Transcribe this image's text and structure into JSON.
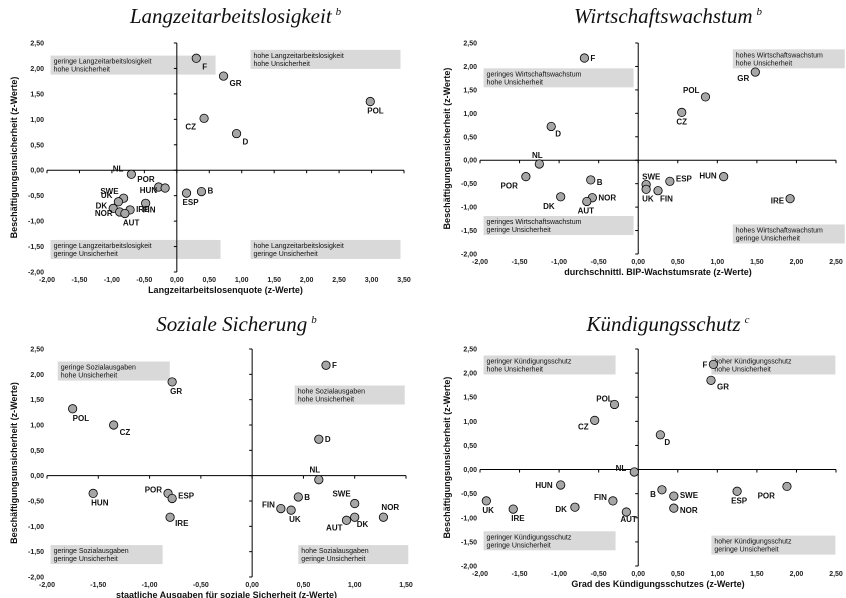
{
  "chart_data": [
    {
      "type": "scatter",
      "title": "Langzeitarbeitslosigkeit",
      "title_sup": "b",
      "xlabel": "Langzeitarbeitslosenquote (z-Werte)",
      "ylabel": "Beschäftigungsunsicherheit (z-Werte)",
      "xlim": [
        -2.0,
        3.5
      ],
      "ylim": [
        -2.0,
        2.5
      ],
      "x_ticks": [
        "-2,00",
        "-1,50",
        "-1,00",
        "-0,50",
        "0,00",
        "0,50",
        "1,00",
        "1,50",
        "2,00",
        "2,50",
        "3,00",
        "3,50"
      ],
      "y_ticks": [
        "2,50",
        "2,00",
        "1,50",
        "1,00",
        "0,50",
        "0,00",
        "-0,50",
        "-1,00",
        "-1,50",
        "-2,00"
      ],
      "quadrant_labels": {
        "top_left": [
          "geringe Langzeitarbeitslosigkeit",
          "hohe Unsicherheit"
        ],
        "top_right": [
          "hohe Langzeitarbeitslosigkeit",
          "hohe Unsicherheit"
        ],
        "bottom_left": [
          "geringe Langzeitarbeitslosigkeit",
          "geringe Unsicherheit"
        ],
        "bottom_right": [
          "hohe Langzeitarbeitslosigkeit",
          "geringe Unsicherheit"
        ]
      },
      "points": [
        {
          "label": "F",
          "x": 0.3,
          "y": 2.2
        },
        {
          "label": "GR",
          "x": 0.72,
          "y": 1.85
        },
        {
          "label": "POL",
          "x": 2.98,
          "y": 1.35
        },
        {
          "label": "CZ",
          "x": 0.42,
          "y": 1.02
        },
        {
          "label": "D",
          "x": 0.92,
          "y": 0.72
        },
        {
          "label": "NL",
          "x": -0.7,
          "y": -0.08
        },
        {
          "label": "POR",
          "x": -0.28,
          "y": -0.33
        },
        {
          "label": "HUN",
          "x": -0.18,
          "y": -0.35
        },
        {
          "label": "B",
          "x": 0.38,
          "y": -0.42
        },
        {
          "label": "ESP",
          "x": 0.15,
          "y": -0.45
        },
        {
          "label": "SWE",
          "x": -0.82,
          "y": -0.55
        },
        {
          "label": "UK",
          "x": -0.9,
          "y": -0.62
        },
        {
          "label": "FIN",
          "x": -0.48,
          "y": -0.65
        },
        {
          "label": "DK",
          "x": -0.98,
          "y": -0.75
        },
        {
          "label": "NOR",
          "x": -0.88,
          "y": -0.82
        },
        {
          "label": "IRE",
          "x": -0.72,
          "y": -0.78
        },
        {
          "label": "AUT",
          "x": -0.8,
          "y": -0.85
        }
      ]
    },
    {
      "type": "scatter",
      "title": "Wirtschaftswachstum",
      "title_sup": "b",
      "xlabel": "durchschnittl. BIP-Wachstumsrate (z-Werte)",
      "ylabel": "Beschäftigungsunsicherheit (z-Werte)",
      "xlim": [
        -2.0,
        2.5
      ],
      "ylim": [
        -2.0,
        2.5
      ],
      "x_ticks": [
        "-2,00",
        "-1,50",
        "-1,00",
        "-0,50",
        "0,00",
        "0,50",
        "1,00",
        "1,50",
        "2,00",
        "2,50"
      ],
      "y_ticks": [
        "2,50",
        "2,00",
        "1,50",
        "1,00",
        "0,50",
        "0,00",
        "-0,50",
        "-1,00",
        "-1,50",
        "-2,00"
      ],
      "quadrant_labels": {
        "top_left": [
          "geringes Wirtschaftswachstum",
          "hohe Unsicherheit"
        ],
        "top_right": [
          "hohes Wirtschaftswachstum",
          "hohe Unsicherheit"
        ],
        "bottom_left": [
          "geringes Wirtschaftswachstum",
          "geringe Unsicherheit"
        ],
        "bottom_right": [
          "hohes Wirtschaftswachstum",
          "geringe Unsicherheit"
        ]
      },
      "points": [
        {
          "label": "F",
          "x": -0.68,
          "y": 2.18
        },
        {
          "label": "GR",
          "x": 1.48,
          "y": 1.88
        },
        {
          "label": "POL",
          "x": 0.85,
          "y": 1.35
        },
        {
          "label": "CZ",
          "x": 0.55,
          "y": 1.02
        },
        {
          "label": "D",
          "x": -1.1,
          "y": 0.72
        },
        {
          "label": "NL",
          "x": -1.25,
          "y": -0.08
        },
        {
          "label": "POR",
          "x": -1.42,
          "y": -0.35
        },
        {
          "label": "HUN",
          "x": 1.08,
          "y": -0.35
        },
        {
          "label": "ESP",
          "x": 0.4,
          "y": -0.45
        },
        {
          "label": "B",
          "x": -0.6,
          "y": -0.42
        },
        {
          "label": "SWE",
          "x": 0.1,
          "y": -0.52
        },
        {
          "label": "UK",
          "x": 0.1,
          "y": -0.62
        },
        {
          "label": "FIN",
          "x": 0.25,
          "y": -0.65
        },
        {
          "label": "DK",
          "x": -0.98,
          "y": -0.78
        },
        {
          "label": "NOR",
          "x": -0.58,
          "y": -0.8
        },
        {
          "label": "AUT",
          "x": -0.65,
          "y": -0.88
        },
        {
          "label": "IRE",
          "x": 1.92,
          "y": -0.82
        }
      ]
    },
    {
      "type": "scatter",
      "title": "Soziale Sicherung",
      "title_sup": "b",
      "xlabel": "staatliche Ausgaben für soziale Sicherheit (z-Werte)",
      "ylabel": "Beschäftigungsunsicherheit (z-Werte)",
      "xlim": [
        -2.0,
        1.5
      ],
      "ylim": [
        -2.0,
        2.5
      ],
      "x_ticks": [
        "-2,00",
        "-1,50",
        "-1,00",
        "-0,50",
        "0,00",
        "0,50",
        "1,00",
        "1,50"
      ],
      "y_ticks": [
        "2,50",
        "2,00",
        "1,50",
        "1,00",
        "0,50",
        "0,00",
        "-0,50",
        "-1,00",
        "-1,50",
        "-2,00"
      ],
      "quadrant_labels": {
        "top_left": [
          "geringe Sozialausgaben",
          "hohe Unsicherheit"
        ],
        "top_right": [
          "hohe Sozialausgaben",
          "hohe Unsicherheit"
        ],
        "bottom_left": [
          "geringe Sozialausgaben",
          "geringe Unsicherheit"
        ],
        "bottom_right": [
          "hohe Sozialausgaben",
          "geringe Unsicherheit"
        ]
      },
      "points": [
        {
          "label": "F",
          "x": 0.72,
          "y": 2.18
        },
        {
          "label": "GR",
          "x": -0.78,
          "y": 1.85
        },
        {
          "label": "POL",
          "x": -1.75,
          "y": 1.32
        },
        {
          "label": "CZ",
          "x": -1.35,
          "y": 1.0
        },
        {
          "label": "D",
          "x": 0.65,
          "y": 0.72
        },
        {
          "label": "NL",
          "x": 0.65,
          "y": -0.08
        },
        {
          "label": "HUN",
          "x": -1.55,
          "y": -0.35
        },
        {
          "label": "POR",
          "x": -0.82,
          "y": -0.35
        },
        {
          "label": "ESP",
          "x": -0.78,
          "y": -0.45
        },
        {
          "label": "B",
          "x": 0.45,
          "y": -0.42
        },
        {
          "label": "SWE",
          "x": 1.0,
          "y": -0.55
        },
        {
          "label": "FIN",
          "x": 0.28,
          "y": -0.65
        },
        {
          "label": "UK",
          "x": 0.38,
          "y": -0.68
        },
        {
          "label": "IRE",
          "x": -0.8,
          "y": -0.82
        },
        {
          "label": "NOR",
          "x": 1.28,
          "y": -0.82
        },
        {
          "label": "DK",
          "x": 1.0,
          "y": -0.82
        },
        {
          "label": "AUT",
          "x": 0.92,
          "y": -0.88
        }
      ]
    },
    {
      "type": "scatter",
      "title": "Kündigungsschutz",
      "title_sup": "c",
      "xlabel": "Grad des Kündigungsschutzes (z-Werte)",
      "ylabel": "Beschäftigungsunsicherheit (z-Werte)",
      "xlim": [
        -2.0,
        2.5
      ],
      "ylim": [
        -2.0,
        2.5
      ],
      "x_ticks": [
        "-2,00",
        "-1,50",
        "-1,00",
        "-0,50",
        "0,00",
        "0,50",
        "1,00",
        "1,50",
        "2,00",
        "2,50"
      ],
      "y_ticks": [
        "2,50",
        "2,00",
        "1,50",
        "1,00",
        "0,50",
        "0,00",
        "-0,50",
        "-1,00",
        "-1,50",
        "-2,00"
      ],
      "quadrant_labels": {
        "top_left": [
          "geringer Kündigungsschutz",
          "hohe Unsicherheit"
        ],
        "top_right": [
          "hoher Kündigungsschutz",
          "hohe Unsicherheit"
        ],
        "bottom_left": [
          "geringer Kündigungsschutz",
          "geringe Unsicherheit"
        ],
        "bottom_right": [
          "hoher Kündigungsschutz",
          "geringe Unsicherheit"
        ]
      },
      "points": [
        {
          "label": "F",
          "x": 0.95,
          "y": 2.18
        },
        {
          "label": "GR",
          "x": 0.92,
          "y": 1.85
        },
        {
          "label": "POL",
          "x": -0.3,
          "y": 1.35
        },
        {
          "label": "CZ",
          "x": -0.55,
          "y": 1.02
        },
        {
          "label": "D",
          "x": 0.28,
          "y": 0.72
        },
        {
          "label": "NL",
          "x": -0.05,
          "y": -0.05
        },
        {
          "label": "HUN",
          "x": -0.98,
          "y": -0.32
        },
        {
          "label": "POR",
          "x": 1.88,
          "y": -0.35
        },
        {
          "label": "B",
          "x": 0.3,
          "y": -0.42
        },
        {
          "label": "ESP",
          "x": 1.25,
          "y": -0.45
        },
        {
          "label": "SWE",
          "x": 0.45,
          "y": -0.55
        },
        {
          "label": "FIN",
          "x": -0.32,
          "y": -0.65
        },
        {
          "label": "UK",
          "x": -1.92,
          "y": -0.65
        },
        {
          "label": "NOR",
          "x": 0.45,
          "y": -0.8
        },
        {
          "label": "DK",
          "x": -0.8,
          "y": -0.78
        },
        {
          "label": "IRE",
          "x": -1.58,
          "y": -0.82
        },
        {
          "label": "AUT",
          "x": -0.15,
          "y": -0.88
        }
      ]
    }
  ]
}
